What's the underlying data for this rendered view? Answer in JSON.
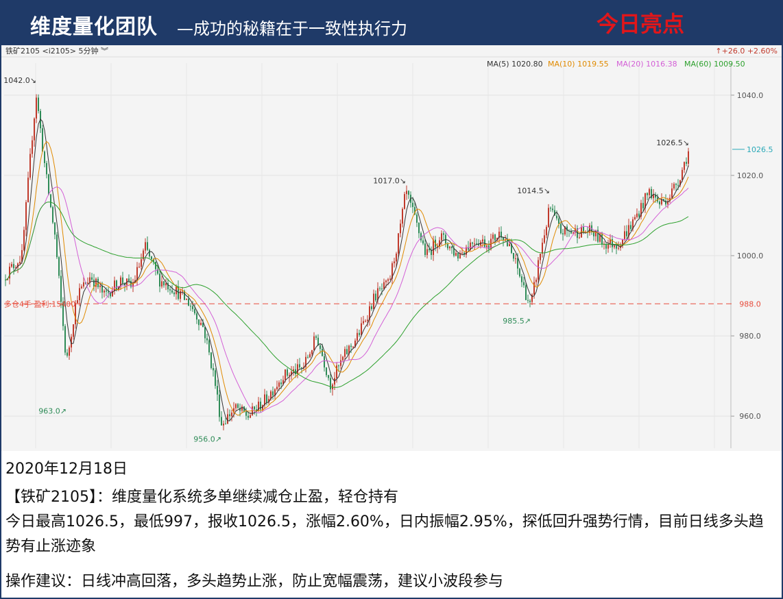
{
  "header": {
    "title_main": "维度量化团队",
    "title_sub": "—成功的秘籍在于一致性执行力",
    "highlight": "今日亮点"
  },
  "chart_toolbar": {
    "symbol": "铁矿2105",
    "code": "<i2105>",
    "period": "5分钟",
    "change": "↑+26.0 +2.60%"
  },
  "colors": {
    "up": "#c0392b",
    "down": "#2e8b57",
    "ma5": "#333333",
    "ma10": "#e08a00",
    "ma20": "#d35fd6",
    "ma60": "#2ca02c",
    "position_line": "#e74c3c",
    "last_price": "#2aa9b8"
  },
  "chart_data": {
    "type": "candlestick",
    "ylim": [
      952,
      1048
    ],
    "y_ticks": [
      960.0,
      980.0,
      1000.0,
      1020.0,
      1040.0
    ],
    "y_tick_labels": [
      "960.0",
      "980.0",
      "1000.0",
      "1020.0",
      "1040.0"
    ],
    "last_price": 1026.5,
    "last_price_label": "1026.5",
    "position_level": 988.0,
    "position_label_axis": "988.0",
    "position_text": "多仓4手 盈利:15400",
    "ma_legend": [
      {
        "name": "MA(5)",
        "value": "1020.80"
      },
      {
        "name": "MA(10)",
        "value": "1019.55"
      },
      {
        "name": "MA(20)",
        "value": "1016.38"
      },
      {
        "name": "MA(60)",
        "value": "1009.50"
      }
    ],
    "annotations": [
      {
        "label": "1042.0↘",
        "bar": 51,
        "value": 1042.0,
        "type": "high"
      },
      {
        "label": "963.0↗",
        "bar": 95,
        "value": 963.0,
        "type": "low"
      },
      {
        "label": "956.0↗",
        "bar": 321,
        "value": 956.0,
        "type": "low"
      },
      {
        "label": "1017.0↘",
        "bar": 590,
        "value": 1017.0,
        "type": "high"
      },
      {
        "label": "985.5↗",
        "bar": 772,
        "value": 985.5,
        "type": "low"
      },
      {
        "label": "1014.5↘",
        "bar": 800,
        "value": 1014.5,
        "type": "high"
      },
      {
        "label": "1026.5↘",
        "bar": 1003,
        "value": 1026.5,
        "type": "high"
      }
    ],
    "price_path": [
      [
        0,
        994
      ],
      [
        30,
        1000
      ],
      [
        45,
        1030
      ],
      [
        51,
        1040
      ],
      [
        65,
        1020
      ],
      [
        78,
        1005
      ],
      [
        95,
        973
      ],
      [
        110,
        990
      ],
      [
        130,
        995
      ],
      [
        150,
        990
      ],
      [
        175,
        994
      ],
      [
        190,
        992
      ],
      [
        210,
        1002
      ],
      [
        230,
        994
      ],
      [
        250,
        992
      ],
      [
        275,
        988
      ],
      [
        295,
        982
      ],
      [
        310,
        970
      ],
      [
        321,
        958
      ],
      [
        340,
        962
      ],
      [
        360,
        960
      ],
      [
        385,
        964
      ],
      [
        410,
        970
      ],
      [
        440,
        972
      ],
      [
        460,
        980
      ],
      [
        480,
        968
      ],
      [
        500,
        975
      ],
      [
        520,
        980
      ],
      [
        545,
        990
      ],
      [
        565,
        993
      ],
      [
        580,
        1005
      ],
      [
        590,
        1016
      ],
      [
        605,
        1008
      ],
      [
        620,
        1000
      ],
      [
        640,
        1005
      ],
      [
        665,
        1000
      ],
      [
        690,
        1004
      ],
      [
        710,
        1003
      ],
      [
        730,
        1006
      ],
      [
        750,
        998
      ],
      [
        772,
        987
      ],
      [
        785,
        1000
      ],
      [
        800,
        1012
      ],
      [
        815,
        1006
      ],
      [
        840,
        1006
      ],
      [
        860,
        1006
      ],
      [
        880,
        1003
      ],
      [
        900,
        1003
      ],
      [
        920,
        1008
      ],
      [
        945,
        1016
      ],
      [
        960,
        1013
      ],
      [
        975,
        1015
      ],
      [
        990,
        1020
      ],
      [
        1003,
        1026.5
      ]
    ]
  },
  "text": {
    "date": "2020年12月18日",
    "line1": "【铁矿2105】：维度量化系统多单继续减仓止盈，轻仓持有",
    "line2": "今日最高1026.5，最低997，报收1026.5，涨幅2.60%，日内振幅2.95%，探低回升强势行情，目前日线多头趋势有止涨迹象",
    "line3": "操作建议：日线冲高回落，多头趋势止涨，防止宽幅震荡，建议小波段参与"
  }
}
